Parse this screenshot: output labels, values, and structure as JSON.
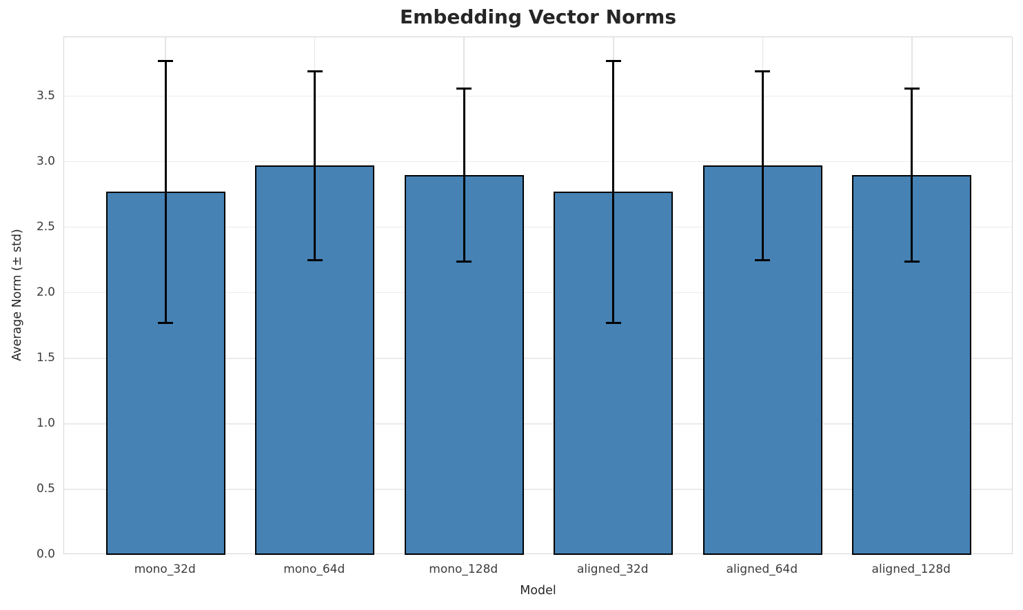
{
  "title": "Embedding Vector Norms",
  "colors": {
    "bar_fill": "#4682b4",
    "bar_edge": "#000000",
    "error_bar": "#000000",
    "grid": "#ebebeb",
    "spine": "#d4d4d4",
    "title_text": "#262626",
    "tick_text": "#3b3b3b",
    "background": "#ffffff"
  },
  "chart_data": {
    "type": "bar",
    "title": "Embedding Vector Norms",
    "xlabel": "Model",
    "ylabel": "Average Norm (± std)",
    "categories": [
      "mono_32d",
      "mono_64d",
      "mono_128d",
      "aligned_32d",
      "aligned_64d",
      "aligned_128d"
    ],
    "values": [
      2.77,
      2.97,
      2.9,
      2.77,
      2.97,
      2.9
    ],
    "errors": [
      1.0,
      0.72,
      0.66,
      1.0,
      0.72,
      0.66
    ],
    "ylim": [
      0,
      3.95
    ],
    "yticks": [
      0.0,
      0.5,
      1.0,
      1.5,
      2.0,
      2.5,
      3.0,
      3.5
    ],
    "grid": "both",
    "legend": "none",
    "error_bar_style": "mean ± std, black caps"
  }
}
